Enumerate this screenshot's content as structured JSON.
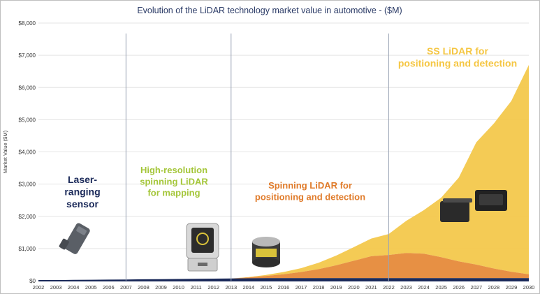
{
  "chart_data": {
    "type": "area",
    "title": "Evolution of the LiDAR technology market value in automotive - ($M)",
    "xlabel": "",
    "ylabel": "Market Value ($M)",
    "ylim": [
      0,
      8000
    ],
    "yticks": [
      "$0",
      "$1,000",
      "$2,000",
      "$3,000",
      "$4,000",
      "$5,000",
      "$6,000",
      "$7,000",
      "$8,000"
    ],
    "ytick_values": [
      0,
      1000,
      2000,
      3000,
      4000,
      5000,
      6000,
      7000,
      8000
    ],
    "x": [
      2002,
      2003,
      2004,
      2005,
      2006,
      2007,
      2008,
      2009,
      2010,
      2011,
      2012,
      2013,
      2014,
      2015,
      2016,
      2017,
      2018,
      2019,
      2020,
      2021,
      2022,
      2023,
      2024,
      2025,
      2026,
      2027,
      2028,
      2029,
      2030
    ],
    "grid": true,
    "series": [
      {
        "name": "Laser-ranging sensor",
        "color": "#1b2a5a",
        "values": [
          10,
          20,
          25,
          30,
          35,
          40,
          45,
          50,
          55,
          60,
          65,
          70,
          75,
          80,
          80,
          80,
          80,
          80,
          80,
          80,
          80,
          80,
          80,
          80,
          80,
          80,
          80,
          80,
          80
        ]
      },
      {
        "name": "Spinning LiDAR for positioning and detection",
        "color": "#e68a3a",
        "values": [
          0,
          0,
          0,
          0,
          0,
          0,
          0,
          0,
          0,
          0,
          0,
          0,
          30,
          70,
          120,
          190,
          280,
          400,
          540,
          680,
          720,
          780,
          760,
          650,
          520,
          420,
          300,
          200,
          120
        ]
      },
      {
        "name": "SS LiDAR for positioning and detection",
        "color": "#f3c84c",
        "values": [
          0,
          0,
          0,
          0,
          0,
          0,
          0,
          0,
          0,
          0,
          0,
          0,
          10,
          30,
          70,
          120,
          200,
          300,
          420,
          550,
          650,
          1000,
          1350,
          1850,
          2600,
          3800,
          4500,
          5300,
          6500
        ]
      }
    ],
    "eras": [
      {
        "label": "Laser-\nranging\nsensor",
        "color": "#1b2a5a"
      },
      {
        "label": "High-resolution\nspinning LiDAR\nfor mapping",
        "color": "#a4c639"
      },
      {
        "label": "Spinning LiDAR for\npositioning and detection",
        "color": "#e07b2a"
      },
      {
        "label": "SS LiDAR for\npositioning and detection",
        "color": "#f5c642"
      }
    ],
    "era_dividers": [
      2007,
      2013,
      2022
    ]
  }
}
